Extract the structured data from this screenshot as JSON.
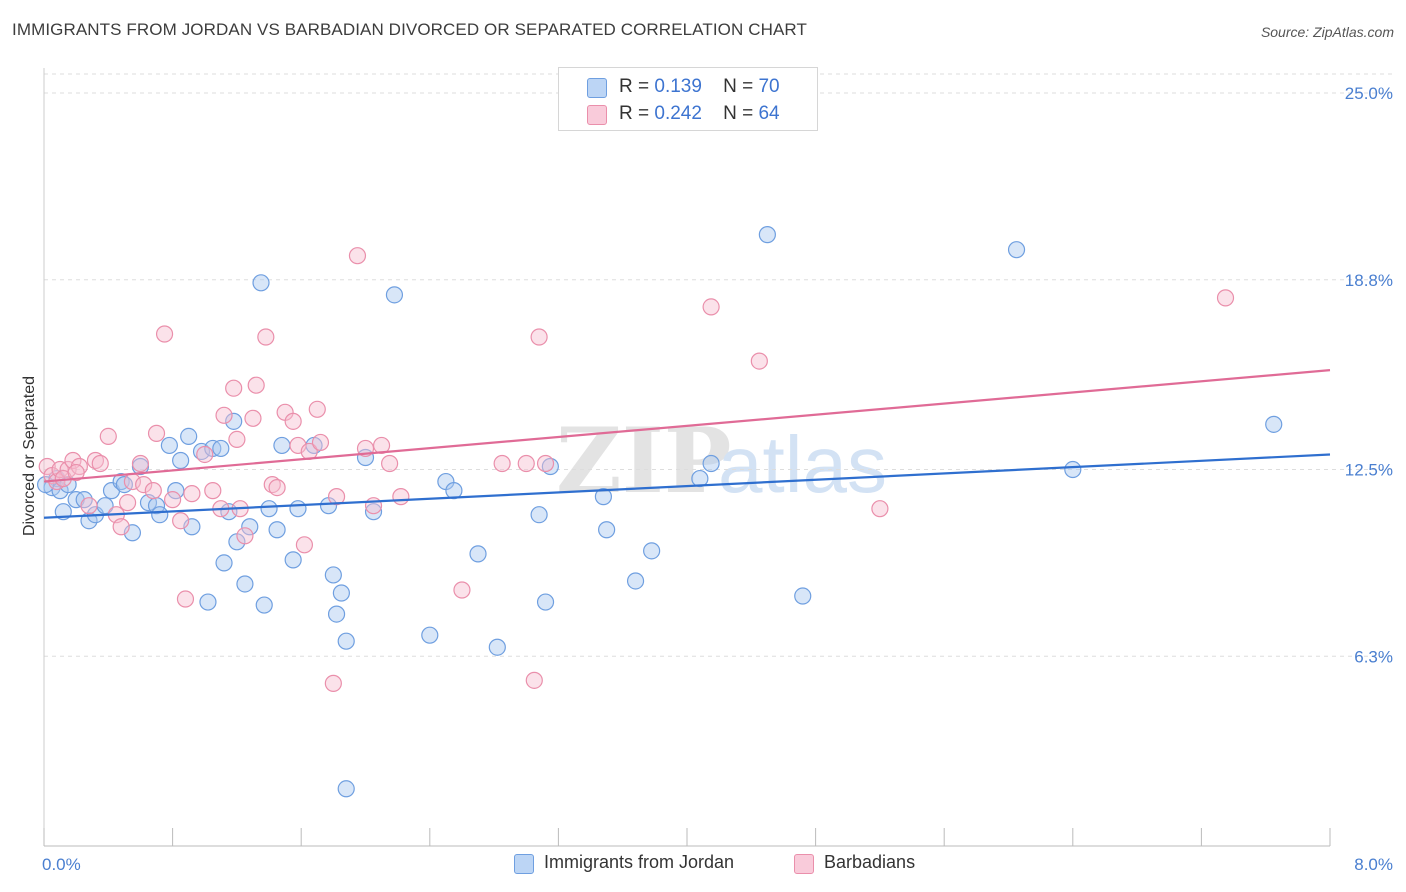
{
  "header": {
    "title": "IMMIGRANTS FROM JORDAN VS BARBADIAN DIVORCED OR SEPARATED CORRELATION CHART",
    "source": "Source: ZipAtlas.com"
  },
  "watermark": "ZIPatlas",
  "legend": {
    "rows": [
      {
        "r_label": "R =",
        "r_value": "0.139",
        "n_label": "N =",
        "n_value": "70"
      },
      {
        "r_label": "R =",
        "r_value": "0.242",
        "n_label": "N =",
        "n_value": "64"
      }
    ]
  },
  "colors": {
    "jordan_fill": "#a9c8f0",
    "jordan_stroke": "#6f9fe0",
    "jordan_line": "#2f6fcf",
    "barb_fill": "#f6bfd0",
    "barb_stroke": "#ea8fab",
    "barb_line": "#e06b96",
    "grid": "#dddddd",
    "tick_text": "#4a7fd0"
  },
  "chart_data": {
    "type": "scatter",
    "title": "IMMIGRANTS FROM JORDAN VS BARBADIAN DIVORCED OR SEPARATED CORRELATION CHART",
    "xlabel": "",
    "ylabel": "Divorced or Separated",
    "xlim": [
      0,
      8
    ],
    "ylim": [
      0,
      25.5
    ],
    "x_tick_labels": [
      "0.0%",
      "8.0%"
    ],
    "y_ticks": [
      6.3,
      12.5,
      18.8,
      25.0
    ],
    "y_tick_labels": [
      "6.3%",
      "12.5%",
      "18.8%",
      "25.0%"
    ],
    "grid": true,
    "legend_position": "top-center",
    "series": [
      {
        "name": "Immigrants from Jordan",
        "r": 0.139,
        "n": 70,
        "trend": {
          "x": [
            0,
            8
          ],
          "y": [
            10.9,
            13.0
          ]
        },
        "points": [
          [
            0.05,
            11.9
          ],
          [
            0.08,
            12.2
          ],
          [
            0.1,
            11.8
          ],
          [
            0.12,
            11.1
          ],
          [
            0.15,
            12.0
          ],
          [
            0.2,
            11.5
          ],
          [
            0.25,
            11.5
          ],
          [
            0.28,
            10.8
          ],
          [
            0.32,
            11.0
          ],
          [
            0.38,
            11.3
          ],
          [
            0.42,
            11.8
          ],
          [
            0.48,
            12.1
          ],
          [
            0.5,
            12.0
          ],
          [
            0.55,
            10.4
          ],
          [
            0.6,
            12.6
          ],
          [
            0.65,
            11.4
          ],
          [
            0.7,
            11.3
          ],
          [
            0.72,
            11.0
          ],
          [
            0.78,
            13.3
          ],
          [
            0.82,
            11.8
          ],
          [
            0.85,
            12.8
          ],
          [
            0.9,
            13.6
          ],
          [
            0.92,
            10.6
          ],
          [
            0.98,
            13.1
          ],
          [
            1.02,
            8.1
          ],
          [
            1.05,
            13.2
          ],
          [
            1.1,
            13.2
          ],
          [
            1.12,
            9.4
          ],
          [
            1.15,
            11.1
          ],
          [
            1.18,
            14.1
          ],
          [
            1.2,
            10.1
          ],
          [
            1.25,
            8.7
          ],
          [
            1.28,
            10.6
          ],
          [
            1.35,
            18.7
          ],
          [
            1.37,
            8.0
          ],
          [
            1.4,
            11.2
          ],
          [
            1.45,
            10.5
          ],
          [
            1.48,
            13.3
          ],
          [
            1.55,
            9.5
          ],
          [
            1.58,
            11.2
          ],
          [
            1.68,
            13.3
          ],
          [
            1.77,
            11.3
          ],
          [
            1.8,
            9.0
          ],
          [
            1.82,
            7.7
          ],
          [
            1.85,
            8.4
          ],
          [
            1.88,
            1.9
          ],
          [
            1.88,
            6.8
          ],
          [
            2.0,
            12.9
          ],
          [
            2.05,
            11.1
          ],
          [
            2.18,
            18.3
          ],
          [
            2.4,
            7.0
          ],
          [
            2.5,
            12.1
          ],
          [
            2.55,
            11.8
          ],
          [
            2.7,
            9.7
          ],
          [
            2.82,
            6.6
          ],
          [
            3.08,
            11.0
          ],
          [
            3.12,
            8.1
          ],
          [
            3.15,
            12.6
          ],
          [
            3.48,
            11.6
          ],
          [
            3.5,
            10.5
          ],
          [
            3.68,
            8.8
          ],
          [
            3.78,
            9.8
          ],
          [
            4.08,
            12.2
          ],
          [
            4.15,
            12.7
          ],
          [
            4.5,
            20.3
          ],
          [
            4.72,
            8.3
          ],
          [
            6.05,
            19.8
          ],
          [
            6.4,
            12.5
          ],
          [
            7.65,
            14.0
          ],
          [
            0.01,
            12.0
          ]
        ]
      },
      {
        "name": "Barbadians",
        "r": 0.242,
        "n": 64,
        "trend": {
          "x": [
            0,
            8
          ],
          "y": [
            12.1,
            15.8
          ]
        },
        "points": [
          [
            0.02,
            12.6
          ],
          [
            0.05,
            12.3
          ],
          [
            0.08,
            12.1
          ],
          [
            0.1,
            12.5
          ],
          [
            0.15,
            12.5
          ],
          [
            0.18,
            12.8
          ],
          [
            0.22,
            12.6
          ],
          [
            0.28,
            11.3
          ],
          [
            0.32,
            12.8
          ],
          [
            0.35,
            12.7
          ],
          [
            0.4,
            13.6
          ],
          [
            0.45,
            11.0
          ],
          [
            0.48,
            10.6
          ],
          [
            0.52,
            11.4
          ],
          [
            0.55,
            12.1
          ],
          [
            0.6,
            12.7
          ],
          [
            0.62,
            12.0
          ],
          [
            0.68,
            11.8
          ],
          [
            0.7,
            13.7
          ],
          [
            0.75,
            17.0
          ],
          [
            0.8,
            11.5
          ],
          [
            0.85,
            10.8
          ],
          [
            0.88,
            8.2
          ],
          [
            0.92,
            11.7
          ],
          [
            1.0,
            13.0
          ],
          [
            1.05,
            11.8
          ],
          [
            1.1,
            11.2
          ],
          [
            1.12,
            14.3
          ],
          [
            1.18,
            15.2
          ],
          [
            1.2,
            13.5
          ],
          [
            1.22,
            11.2
          ],
          [
            1.25,
            10.3
          ],
          [
            1.3,
            14.2
          ],
          [
            1.32,
            15.3
          ],
          [
            1.38,
            16.9
          ],
          [
            1.42,
            12.0
          ],
          [
            1.45,
            11.9
          ],
          [
            1.5,
            14.4
          ],
          [
            1.55,
            14.1
          ],
          [
            1.58,
            13.3
          ],
          [
            1.62,
            10.0
          ],
          [
            1.65,
            13.1
          ],
          [
            1.7,
            14.5
          ],
          [
            1.72,
            13.4
          ],
          [
            1.8,
            5.4
          ],
          [
            1.82,
            11.6
          ],
          [
            1.95,
            19.6
          ],
          [
            2.0,
            13.2
          ],
          [
            2.05,
            11.3
          ],
          [
            2.1,
            13.3
          ],
          [
            2.15,
            12.7
          ],
          [
            2.22,
            11.6
          ],
          [
            2.6,
            8.5
          ],
          [
            2.85,
            12.7
          ],
          [
            3.0,
            12.7
          ],
          [
            3.05,
            5.5
          ],
          [
            3.08,
            16.9
          ],
          [
            3.12,
            12.7
          ],
          [
            4.15,
            17.9
          ],
          [
            4.45,
            16.1
          ],
          [
            5.2,
            11.2
          ],
          [
            7.35,
            18.2
          ],
          [
            0.12,
            12.2
          ],
          [
            0.2,
            12.4
          ]
        ]
      }
    ]
  },
  "bottom_legend": {
    "items": [
      "Immigrants from Jordan",
      "Barbadians"
    ]
  }
}
